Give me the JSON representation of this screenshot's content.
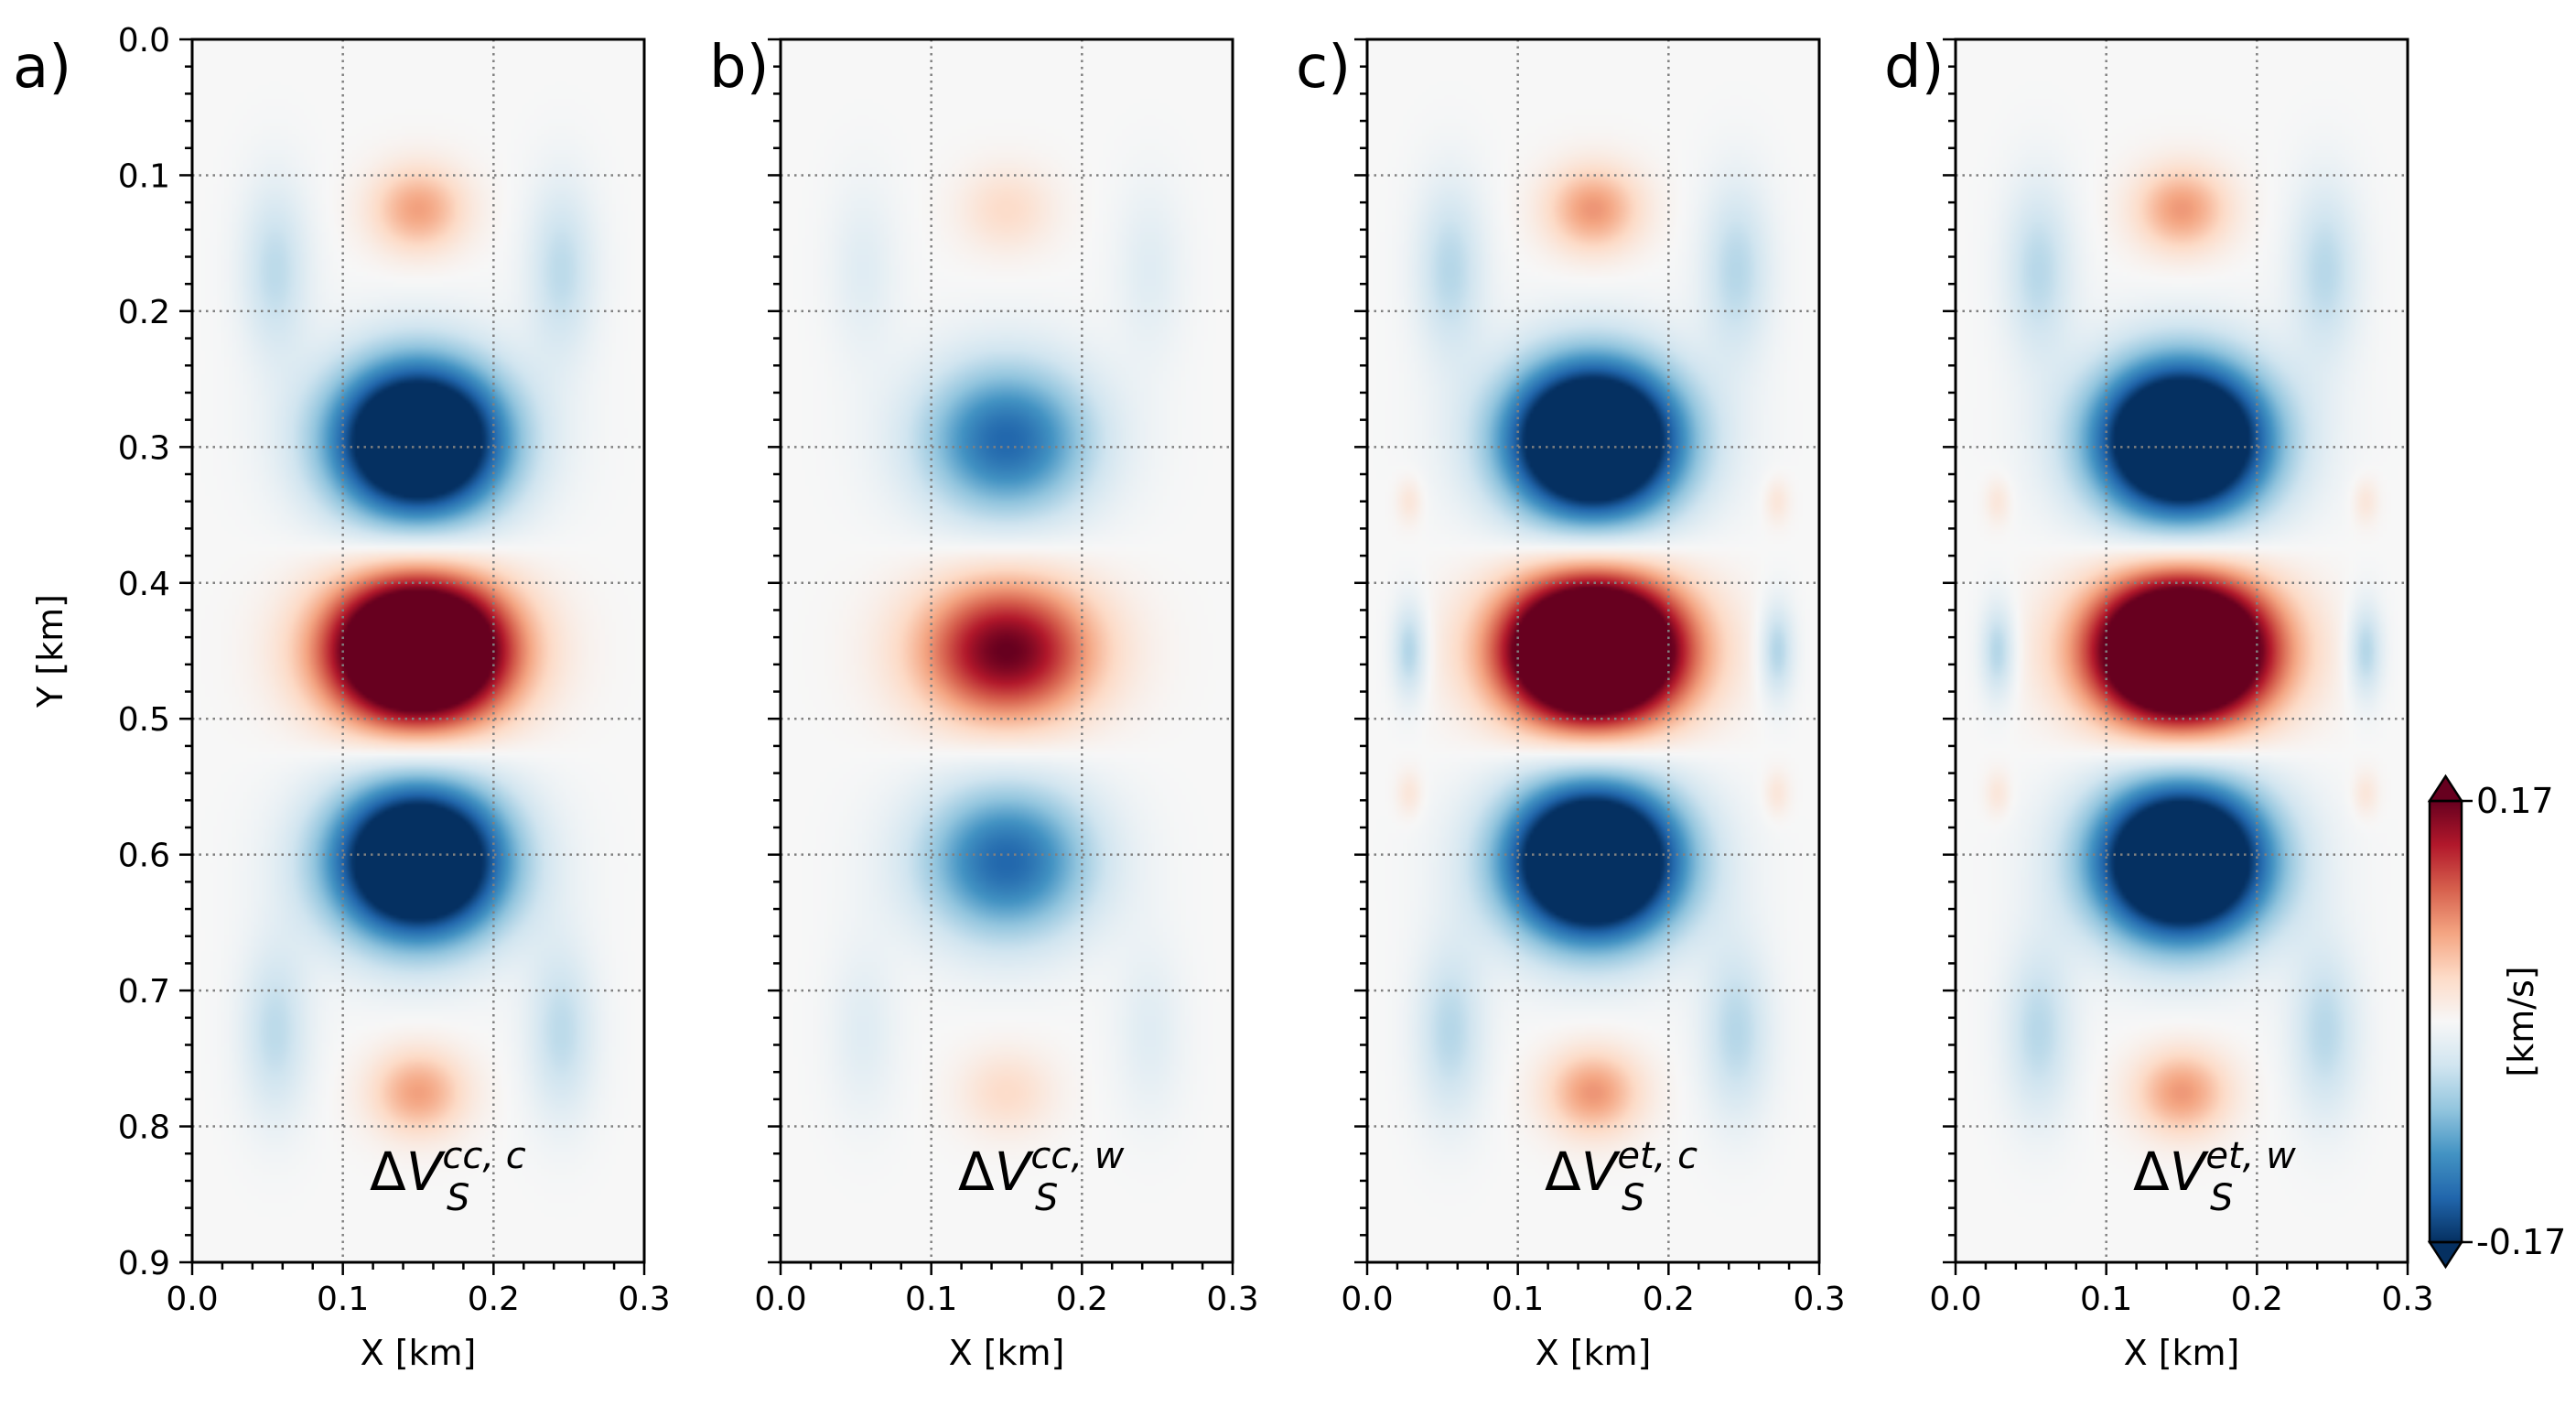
{
  "chart_data": {
    "type": "heatmap",
    "panels": [
      {
        "letter": "a)",
        "label_base": "ΔV",
        "label_sub": "S",
        "label_sup": "cc, c",
        "xlabel": "X [km]",
        "ylabel": "Y [km]",
        "scale": 1.0,
        "side_blobs": false
      },
      {
        "letter": "b)",
        "label_base": "ΔV",
        "label_sub": "S",
        "label_sup": "cc, w",
        "xlabel": "X [km]",
        "ylabel": "",
        "scale": 0.45,
        "side_blobs": false
      },
      {
        "letter": "c)",
        "label_base": "ΔV",
        "label_sub": "S",
        "label_sup": "et, c",
        "xlabel": "X [km]",
        "ylabel": "",
        "scale": 1.08,
        "side_blobs": true
      },
      {
        "letter": "d)",
        "label_base": "ΔV",
        "label_sub": "S",
        "label_sup": "et, w",
        "xlabel": "X [km]",
        "ylabel": "",
        "scale": 1.06,
        "side_blobs": true
      }
    ],
    "features": [
      {
        "x": 0.15,
        "y": 0.45,
        "sx": 0.04,
        "sy": 0.036,
        "amp": 0.38
      },
      {
        "x": 0.15,
        "y": 0.295,
        "sx": 0.04,
        "sy": 0.04,
        "amp": -0.3
      },
      {
        "x": 0.15,
        "y": 0.605,
        "sx": 0.04,
        "sy": 0.04,
        "amp": -0.3
      },
      {
        "x": 0.15,
        "y": 0.125,
        "sx": 0.022,
        "sy": 0.022,
        "amp": 0.07
      },
      {
        "x": 0.15,
        "y": 0.775,
        "sx": 0.022,
        "sy": 0.022,
        "amp": 0.07
      },
      {
        "x": 0.055,
        "y": 0.17,
        "sx": 0.016,
        "sy": 0.045,
        "amp": -0.045
      },
      {
        "x": 0.245,
        "y": 0.17,
        "sx": 0.016,
        "sy": 0.045,
        "amp": -0.045
      },
      {
        "x": 0.055,
        "y": 0.73,
        "sx": 0.016,
        "sy": 0.045,
        "amp": -0.045
      },
      {
        "x": 0.245,
        "y": 0.73,
        "sx": 0.016,
        "sy": 0.045,
        "amp": -0.045
      }
    ],
    "side_features": [
      {
        "x": 0.028,
        "y": 0.45,
        "sx": 0.008,
        "sy": 0.025,
        "amp": -0.05
      },
      {
        "x": 0.272,
        "y": 0.45,
        "sx": 0.008,
        "sy": 0.025,
        "amp": -0.05
      },
      {
        "x": 0.028,
        "y": 0.34,
        "sx": 0.006,
        "sy": 0.012,
        "amp": 0.02
      },
      {
        "x": 0.272,
        "y": 0.34,
        "sx": 0.006,
        "sy": 0.012,
        "amp": 0.02
      },
      {
        "x": 0.028,
        "y": 0.555,
        "sx": 0.006,
        "sy": 0.012,
        "amp": 0.02
      },
      {
        "x": 0.272,
        "y": 0.555,
        "sx": 0.006,
        "sy": 0.012,
        "amp": 0.02
      }
    ],
    "xlim": [
      0.0,
      0.3
    ],
    "ylim": [
      0.0,
      0.9
    ],
    "y_inverted": true,
    "xticks": [
      "0.0",
      "0.1",
      "0.2",
      "0.3"
    ],
    "yticks": [
      "0.0",
      "0.1",
      "0.2",
      "0.3",
      "0.4",
      "0.5",
      "0.6",
      "0.7",
      "0.8",
      "0.9"
    ],
    "grid": "dotted",
    "colorbar": {
      "min": -0.17,
      "max": 0.17,
      "min_label": "-0.17",
      "max_label": "0.17",
      "label": "[km/s]",
      "colormap": "RdBu_r",
      "extend": "both"
    }
  }
}
